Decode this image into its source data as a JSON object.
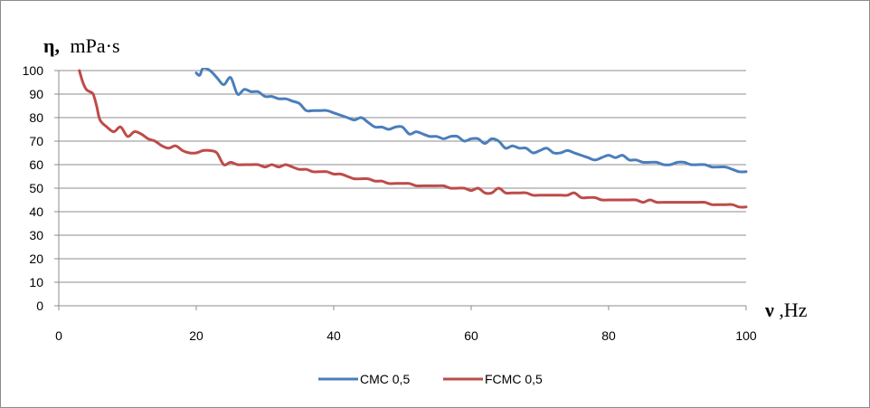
{
  "chart_data": {
    "type": "line",
    "title": "",
    "ylabel_symbol": "η,",
    "ylabel_unit": "mPa·s",
    "xlabel_symbol": "ν",
    "xlabel_unit": ",Hz",
    "xlim": [
      0,
      100
    ],
    "ylim": [
      0,
      100
    ],
    "x_ticks": [
      "0",
      "20",
      "40",
      "60",
      "80",
      "100"
    ],
    "y_ticks": [
      "0",
      "10",
      "20",
      "30",
      "40",
      "50",
      "60",
      "70",
      "80",
      "90",
      "100"
    ],
    "grid": "horizontal",
    "legend_position": "bottom",
    "series": [
      {
        "name": "CMC 0,5",
        "color": "#4a7ebb",
        "x": [
          20,
          20.5,
          21,
          22,
          23,
          24,
          25,
          26,
          27,
          28,
          29,
          30,
          31,
          32,
          33,
          34,
          35,
          36,
          37,
          38,
          39,
          40,
          41,
          42,
          43,
          44,
          45,
          46,
          47,
          48,
          49,
          50,
          51,
          52,
          53,
          54,
          55,
          56,
          57,
          58,
          59,
          60,
          61,
          62,
          63,
          64,
          65,
          66,
          67,
          68,
          69,
          70,
          71,
          72,
          73,
          74,
          75,
          76,
          77,
          78,
          79,
          80,
          81,
          82,
          83,
          84,
          85,
          86,
          87,
          88,
          89,
          90,
          91,
          92,
          93,
          94,
          95,
          96,
          97,
          98,
          99,
          100
        ],
        "y": [
          99,
          98,
          101,
          100,
          97,
          94,
          97,
          90,
          92,
          91,
          91,
          89,
          89,
          88,
          88,
          87,
          86,
          83,
          83,
          83,
          83,
          82,
          81,
          80,
          79,
          80,
          78,
          76,
          76,
          75,
          76,
          76,
          73,
          74,
          73,
          72,
          72,
          71,
          72,
          72,
          70,
          71,
          71,
          69,
          71,
          70,
          67,
          68,
          67,
          67,
          65,
          66,
          67,
          65,
          65,
          66,
          65,
          64,
          63,
          62,
          63,
          64,
          63,
          64,
          62,
          62,
          61,
          61,
          61,
          60,
          60,
          61,
          61,
          60,
          60,
          60,
          59,
          59,
          59,
          58,
          57,
          57
        ]
      },
      {
        "name": "FCMC 0,5",
        "color": "#be4b48",
        "x": [
          3,
          3.5,
          4,
          4.5,
          5,
          5.5,
          6,
          7,
          8,
          9,
          10,
          11,
          12,
          13,
          14,
          15,
          16,
          17,
          18,
          19,
          20,
          21,
          22,
          23,
          24,
          25,
          26,
          27,
          28,
          29,
          30,
          31,
          32,
          33,
          34,
          35,
          36,
          37,
          38,
          39,
          40,
          41,
          42,
          43,
          44,
          45,
          46,
          47,
          48,
          49,
          50,
          51,
          52,
          53,
          54,
          55,
          56,
          57,
          58,
          59,
          60,
          61,
          62,
          63,
          64,
          65,
          66,
          67,
          68,
          69,
          70,
          71,
          72,
          73,
          74,
          75,
          76,
          77,
          78,
          79,
          80,
          81,
          82,
          83,
          84,
          85,
          86,
          87,
          88,
          89,
          90,
          91,
          92,
          93,
          94,
          95,
          96,
          97,
          98,
          99,
          100
        ],
        "y": [
          100,
          95,
          92,
          91,
          90,
          85,
          79,
          76,
          74,
          76,
          72,
          74,
          73,
          71,
          70,
          68,
          67,
          68,
          66,
          65,
          65,
          66,
          66,
          65,
          60,
          61,
          60,
          60,
          60,
          60,
          59,
          60,
          59,
          60,
          59,
          58,
          58,
          57,
          57,
          57,
          56,
          56,
          55,
          54,
          54,
          54,
          53,
          53,
          52,
          52,
          52,
          52,
          51,
          51,
          51,
          51,
          51,
          50,
          50,
          50,
          49,
          50,
          48,
          48,
          50,
          48,
          48,
          48,
          48,
          47,
          47,
          47,
          47,
          47,
          47,
          48,
          46,
          46,
          46,
          45,
          45,
          45,
          45,
          45,
          45,
          44,
          45,
          44,
          44,
          44,
          44,
          44,
          44,
          44,
          44,
          43,
          43,
          43,
          43,
          42,
          42
        ]
      }
    ]
  }
}
